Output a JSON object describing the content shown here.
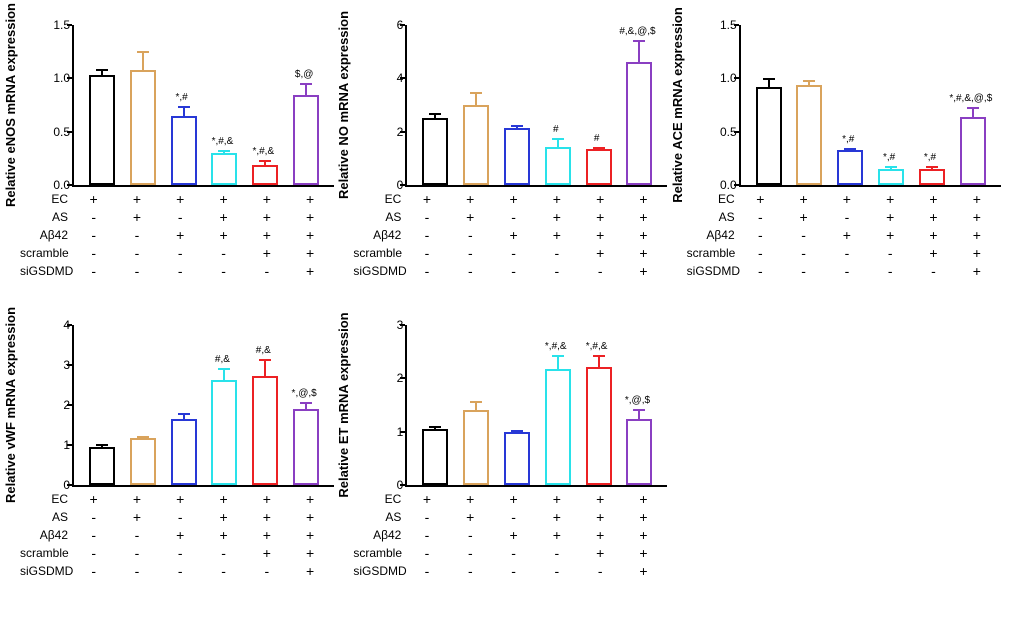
{
  "colors": {
    "bars": [
      "#000000",
      "#d9a35c",
      "#2838d6",
      "#29e2ea",
      "#ec2124",
      "#8a3fc2"
    ],
    "bg": "#ffffff"
  },
  "conditions": {
    "labels": [
      "EC",
      "AS",
      "Aβ42",
      "scramble",
      "siGSDMD"
    ],
    "matrix": [
      [
        "+",
        "+",
        "+",
        "+",
        "+",
        "+"
      ],
      [
        "-",
        "+",
        "-",
        "+",
        "+",
        "+"
      ],
      [
        "-",
        "-",
        "+",
        "+",
        "+",
        "+"
      ],
      [
        "-",
        "-",
        "-",
        "-",
        "+",
        "+"
      ],
      [
        "-",
        "-",
        "-",
        "-",
        "-",
        "+"
      ]
    ]
  },
  "panels": [
    {
      "ylabel": "Relative eNOS mRNA expression",
      "ylim": [
        0,
        1.5
      ],
      "ytick_step": 0.5,
      "values": [
        1.03,
        1.08,
        0.65,
        0.3,
        0.19,
        0.84
      ],
      "errors": [
        0.06,
        0.18,
        0.09,
        0.03,
        0.04,
        0.12
      ],
      "sig": [
        "",
        "",
        "*,#",
        "*,#,&",
        "*,#,&",
        "$,@"
      ]
    },
    {
      "ylabel": "Relative NO mRNA expression",
      "ylim": [
        0,
        6
      ],
      "ytick_step": 2,
      "values": [
        2.5,
        3.0,
        2.13,
        1.42,
        1.35,
        4.6
      ],
      "errors": [
        0.2,
        0.5,
        0.12,
        0.35,
        0.08,
        0.85
      ],
      "sig": [
        "",
        "",
        "",
        "#",
        "#",
        "#,&,@,$"
      ]
    },
    {
      "ylabel": "Relative ACE mRNA expression",
      "ylim": [
        0,
        1.5
      ],
      "ytick_step": 0.5,
      "values": [
        0.92,
        0.94,
        0.33,
        0.15,
        0.15,
        0.64
      ],
      "errors": [
        0.08,
        0.04,
        0.02,
        0.03,
        0.03,
        0.09
      ],
      "sig": [
        "",
        "",
        "*,#",
        "*,#",
        "*,#",
        "*,#,&,@,$"
      ]
    },
    {
      "ylabel": "Relative vWF mRNA expression",
      "ylim": [
        0,
        4
      ],
      "ytick_step": 1,
      "values": [
        0.95,
        1.18,
        1.65,
        2.63,
        2.73,
        1.9
      ],
      "errors": [
        0.07,
        0.04,
        0.15,
        0.3,
        0.42,
        0.18
      ],
      "sig": [
        "",
        "",
        "",
        "#,&",
        "#,&",
        "*,@,$"
      ]
    },
    {
      "ylabel": "Relative ET mRNA expression",
      "ylim": [
        0,
        3
      ],
      "ytick_step": 1,
      "values": [
        1.05,
        1.4,
        1.0,
        2.18,
        2.22,
        1.23
      ],
      "errors": [
        0.05,
        0.18,
        0.04,
        0.25,
        0.22,
        0.2
      ],
      "sig": [
        "",
        "",
        "",
        "*,#,&",
        "*,#,&",
        "*,@,$"
      ]
    }
  ]
}
